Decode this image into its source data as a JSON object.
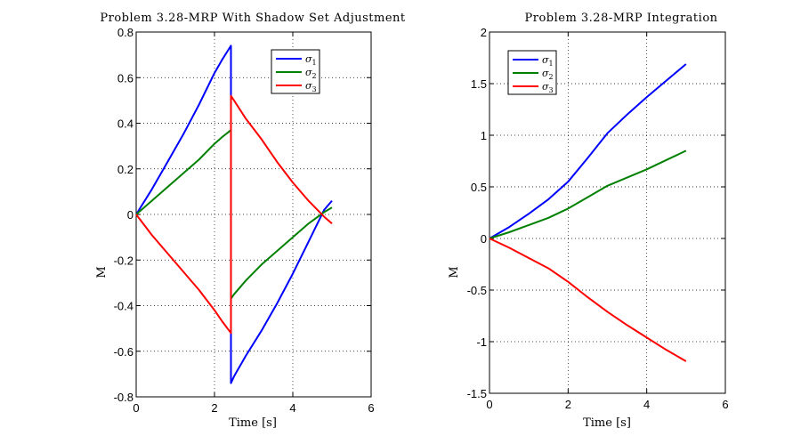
{
  "chart_data": [
    {
      "type": "line",
      "title": "Problem 3.28-MRP With Shadow Set Adjustment",
      "xlabel": "Time [s]",
      "ylabel": "M",
      "xlim": [
        0,
        6
      ],
      "ylim": [
        -0.8,
        0.8
      ],
      "xticks": [
        "0",
        "2",
        "4",
        "6"
      ],
      "yticks": [
        "-0.8",
        "-0.6",
        "-0.4",
        "-0.2",
        "0",
        "0.2",
        "0.4",
        "0.6",
        "0.8"
      ],
      "grid": true,
      "legend_position": "top-right",
      "series": [
        {
          "name": "σ",
          "subscript": "1",
          "color": "#0000ff",
          "x": [
            0,
            0.4,
            0.8,
            1.2,
            1.6,
            2.0,
            2.2,
            2.42,
            2.42,
            2.5,
            2.8,
            3.2,
            3.6,
            4.0,
            4.4,
            4.8,
            5.0
          ],
          "y": [
            0,
            0.11,
            0.23,
            0.35,
            0.48,
            0.62,
            0.68,
            0.74,
            -0.74,
            -0.71,
            -0.62,
            -0.51,
            -0.39,
            -0.26,
            -0.12,
            0.02,
            0.06
          ]
        },
        {
          "name": "σ",
          "subscript": "2",
          "color": "#008000",
          "x": [
            0,
            0.4,
            0.8,
            1.2,
            1.6,
            2.0,
            2.2,
            2.42,
            2.42,
            2.5,
            2.8,
            3.2,
            3.6,
            4.0,
            4.4,
            4.8,
            5.0
          ],
          "y": [
            0,
            0.06,
            0.12,
            0.18,
            0.24,
            0.31,
            0.34,
            0.37,
            -0.37,
            -0.35,
            -0.29,
            -0.22,
            -0.16,
            -0.1,
            -0.04,
            0.01,
            0.03
          ]
        },
        {
          "name": "σ",
          "subscript": "3",
          "color": "#ff0000",
          "x": [
            0,
            0.4,
            0.8,
            1.2,
            1.6,
            2.0,
            2.2,
            2.42,
            2.42,
            2.5,
            2.8,
            3.2,
            3.6,
            4.0,
            4.4,
            4.8,
            5.0
          ],
          "y": [
            0,
            -0.09,
            -0.17,
            -0.25,
            -0.33,
            -0.42,
            -0.47,
            -0.52,
            0.52,
            0.5,
            0.42,
            0.33,
            0.23,
            0.14,
            0.06,
            -0.01,
            -0.04
          ]
        }
      ]
    },
    {
      "type": "line",
      "title": "Problem 3.28-MRP Integration",
      "xlabel": "Time [s]",
      "ylabel": "M",
      "xlim": [
        0,
        6
      ],
      "ylim": [
        -1.5,
        2
      ],
      "xticks": [
        "0",
        "2",
        "4",
        "6"
      ],
      "yticks": [
        "-1.5",
        "-1",
        "-0.5",
        "0",
        "0.5",
        "1",
        "1.5",
        "2"
      ],
      "grid": true,
      "legend_position": "top-left",
      "series": [
        {
          "name": "σ",
          "subscript": "1",
          "color": "#0000ff",
          "x": [
            0,
            0.5,
            1.0,
            1.5,
            2.0,
            2.5,
            3.0,
            3.5,
            4.0,
            4.5,
            5.0
          ],
          "y": [
            0,
            0.11,
            0.24,
            0.38,
            0.55,
            0.78,
            1.02,
            1.2,
            1.37,
            1.53,
            1.69
          ]
        },
        {
          "name": "σ",
          "subscript": "2",
          "color": "#008000",
          "x": [
            0,
            0.5,
            1.0,
            1.5,
            2.0,
            2.5,
            3.0,
            3.5,
            4.0,
            4.5,
            5.0
          ],
          "y": [
            0,
            0.06,
            0.13,
            0.2,
            0.29,
            0.4,
            0.51,
            0.59,
            0.67,
            0.76,
            0.85
          ]
        },
        {
          "name": "σ",
          "subscript": "3",
          "color": "#ff0000",
          "x": [
            0,
            0.5,
            1.0,
            1.5,
            2.0,
            2.5,
            3.0,
            3.5,
            4.0,
            4.5,
            5.0
          ],
          "y": [
            0,
            -0.09,
            -0.19,
            -0.29,
            -0.42,
            -0.57,
            -0.71,
            -0.84,
            -0.96,
            -1.08,
            -1.19
          ]
        }
      ]
    }
  ]
}
